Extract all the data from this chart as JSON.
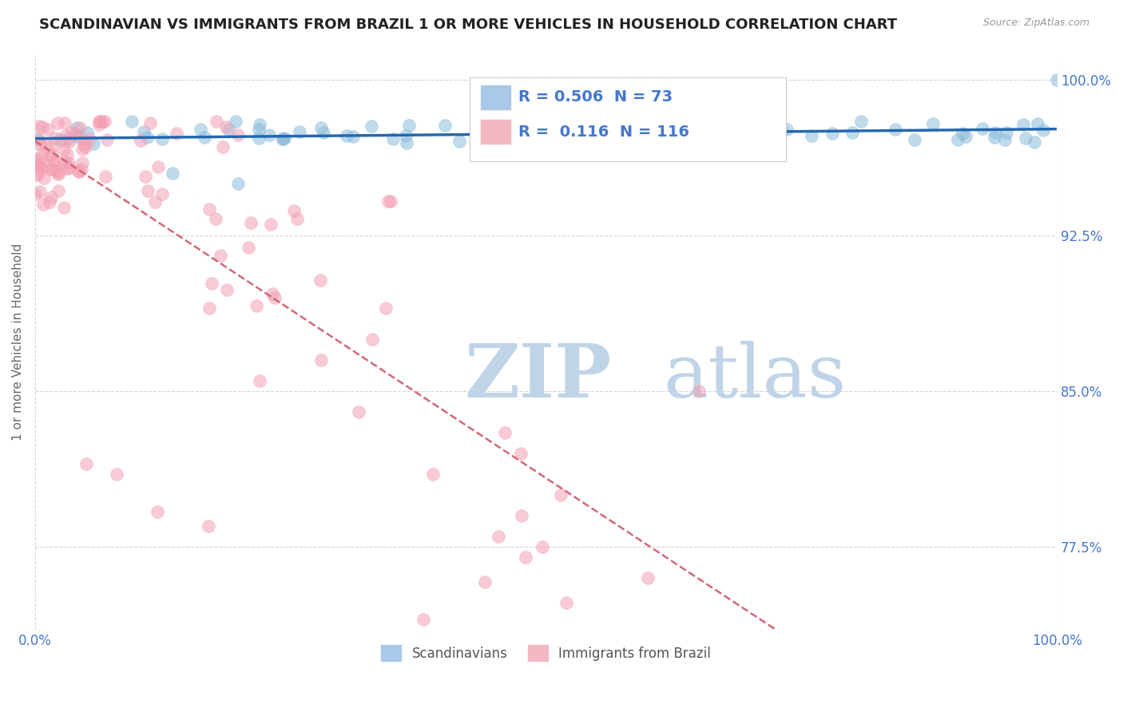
{
  "title": "SCANDINAVIAN VS IMMIGRANTS FROM BRAZIL 1 OR MORE VEHICLES IN HOUSEHOLD CORRELATION CHART",
  "source_text": "Source: ZipAtlas.com",
  "ylabel": "1 or more Vehicles in Household",
  "xlim": [
    0.0,
    1.0
  ],
  "ylim": [
    0.735,
    1.012
  ],
  "xticks": [
    0.0,
    1.0
  ],
  "xticklabels": [
    "0.0%",
    "100.0%"
  ],
  "yticks": [
    0.775,
    0.85,
    0.925,
    1.0
  ],
  "yticklabels": [
    "77.5%",
    "85.0%",
    "92.5%",
    "100.0%"
  ],
  "blue_R": 0.506,
  "blue_N": 73,
  "pink_R": 0.116,
  "pink_N": 116,
  "blue_color": "#8bbcdc",
  "pink_color": "#f4a0b4",
  "blue_line_color": "#2468b0",
  "pink_line_color": "#d06878",
  "legend_label_blue": "Scandinavians",
  "legend_label_pink": "Immigrants from Brazil",
  "title_fontsize": 13,
  "axis_label_fontsize": 11,
  "tick_fontsize": 12,
  "watermark_zip": "ZIP",
  "watermark_atlas": "atlas",
  "watermark_color_zip": "#c0d4e8",
  "watermark_color_atlas": "#c0d4e8",
  "grid_color": "#cccccc",
  "tick_color": "#4477cc",
  "source_color": "#999999"
}
